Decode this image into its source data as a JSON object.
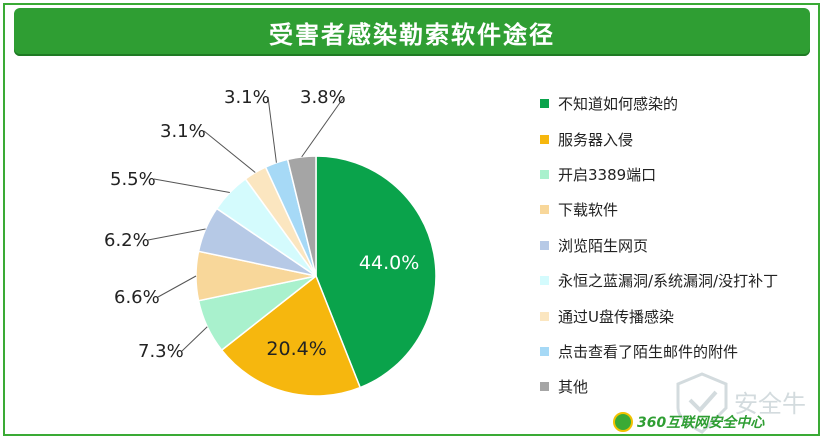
{
  "title": "受害者感染勒索软件途径",
  "chart_data": {
    "type": "pie",
    "title": "受害者感染勒索软件途径",
    "slices": [
      {
        "label": "不知道如何感染的",
        "value": 44.0,
        "display": "44.0%",
        "color": "#0aa34b"
      },
      {
        "label": "服务器入侵",
        "value": 20.4,
        "display": "20.4%",
        "color": "#f6b70e"
      },
      {
        "label": "开启3389端口",
        "value": 7.3,
        "display": "7.3%",
        "color": "#a9f1cd"
      },
      {
        "label": "下载软件",
        "value": 6.6,
        "display": "6.6%",
        "color": "#f8d79a"
      },
      {
        "label": "浏览陌生网页",
        "value": 6.2,
        "display": "6.2%",
        "color": "#b6c9e6"
      },
      {
        "label": "永恒之蓝漏洞/系统漏洞/没打补丁",
        "value": 5.5,
        "display": "5.5%",
        "color": "#d4fbfd"
      },
      {
        "label": "通过U盘传播感染",
        "value": 3.1,
        "display": "3.1%",
        "color": "#fbe6c0"
      },
      {
        "label": "点击查看了陌生邮件的附件",
        "value": 3.1,
        "display": "3.1%",
        "color": "#a6d9f6"
      },
      {
        "label": "其他",
        "value": 3.8,
        "display": "3.8%",
        "color": "#a5a5a5"
      }
    ],
    "legend_position": "right"
  },
  "watermark": "安全牛",
  "brand": "360互联网安全中心"
}
